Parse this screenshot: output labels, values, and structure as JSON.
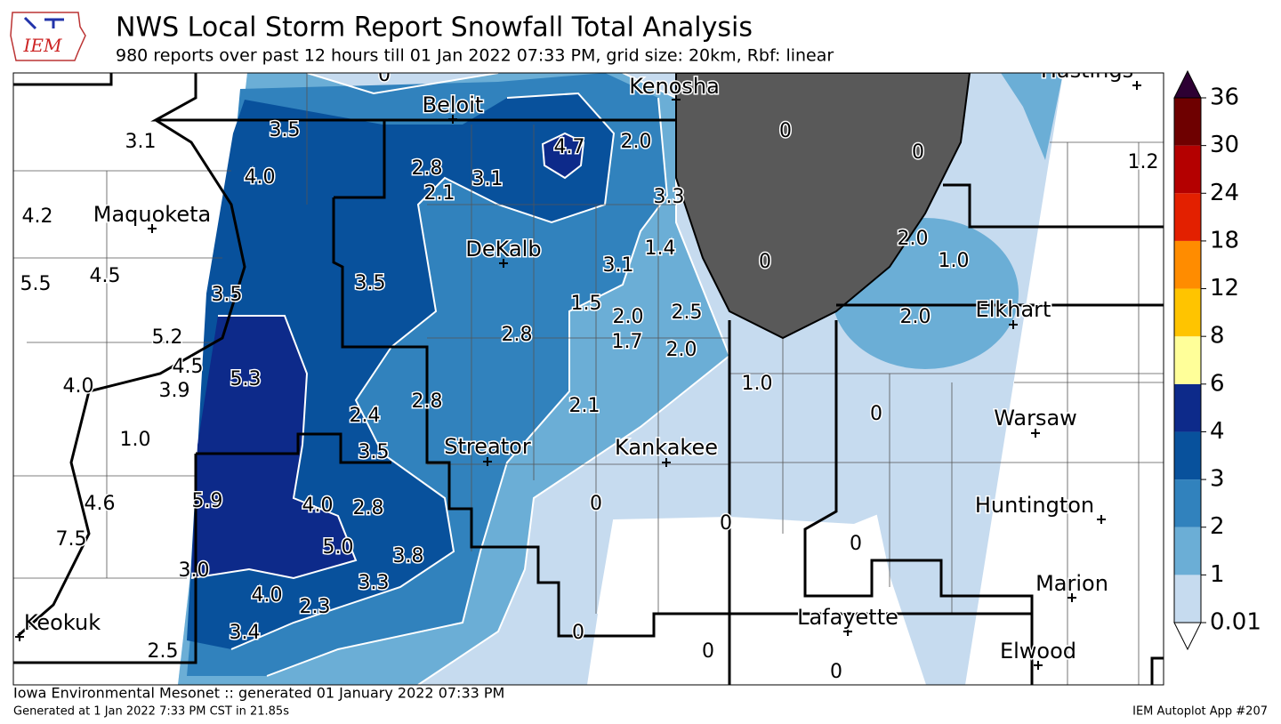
{
  "header": {
    "logo": "IEM",
    "title": "NWS Local Storm Report Snowfall Total Analysis",
    "subtitle": "980 reports over past 12 hours till 01 Jan 2022 07:33 PM, grid size: 20km, Rbf: linear"
  },
  "map": {
    "cities": [
      "Beloit",
      "Kenosha",
      "Hastings",
      "Maquoketa",
      "DeKalb",
      "Elkhart",
      "Warsaw",
      "Streator",
      "Kankakee",
      "Huntington",
      "Marion",
      "Keokuk",
      "Lafayette",
      "Elwood"
    ],
    "snowfall_labels": [
      "0",
      "3.5",
      "3.1",
      "4.0",
      "2.8",
      "2.1",
      "3.1",
      "4.7",
      "2.0",
      "3.3",
      "0",
      "0",
      "1.2",
      "4.2",
      "1.4",
      "3.1",
      "0",
      "2.0",
      "1.0",
      "5.5",
      "4.5",
      "3.5",
      "3.5",
      "1.5",
      "2.5",
      "2.0",
      "2.0",
      "5.2",
      "2.8",
      "1.7",
      "2.0",
      "4.5",
      "5.3",
      "4.0",
      "3.9",
      "1.0",
      "2.4",
      "2.8",
      "2.1",
      "0",
      "1.0",
      "3.5",
      "4.6",
      "5.9",
      "4.0",
      "2.8",
      "0",
      "0",
      "7.5",
      "5.0",
      "3.8",
      "0",
      "3.0",
      "3.3",
      "4.0",
      "2.3",
      "3.4",
      "0",
      "2.5",
      "0",
      "0"
    ]
  },
  "colorbar": {
    "ticks": [
      "0.01",
      "1",
      "2",
      "3",
      "4",
      "6",
      "8",
      "12",
      "18",
      "24",
      "30",
      "36"
    ],
    "colors": [
      "#c6dbef",
      "#6baed6",
      "#3182bd",
      "#08519c",
      "#0d2a8a",
      "#ffff99",
      "#ffc400",
      "#ff8c00",
      "#e32000",
      "#b40000",
      "#6e0000"
    ],
    "over_color": "#2d0033",
    "under_color": "#ffffff"
  },
  "footer": {
    "left": "Iowa Environmental Mesonet :: generated 01 January 2022 07:33 PM",
    "bottom_left": "Generated at 1 Jan 2022 7:33 PM CST in 21.85s",
    "bottom_right": "IEM Autoplot App #207"
  }
}
